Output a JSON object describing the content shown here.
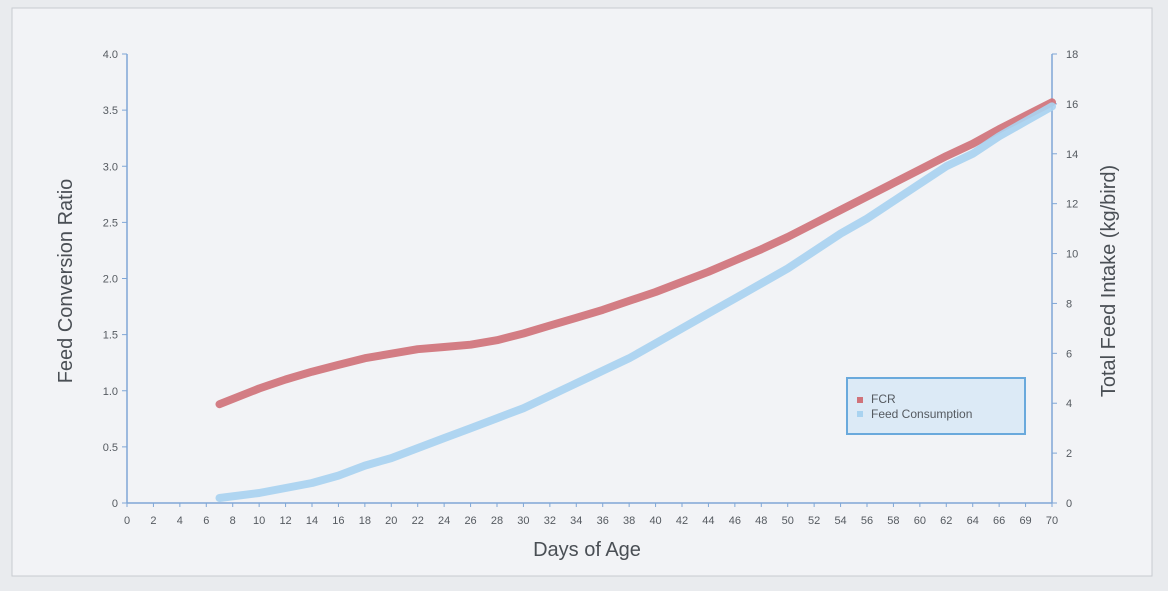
{
  "chart_data": {
    "type": "line",
    "title": "",
    "xlabel": "Days of Age",
    "ylabel_left": "Feed Conversion Ratio",
    "ylabel_right": "Total Feed Intake (kg/bird)",
    "x_ticks": [
      "0",
      "2",
      "4",
      "6",
      "8",
      "10",
      "12",
      "14",
      "16",
      "18",
      "20",
      "22",
      "24",
      "26",
      "28",
      "30",
      "32",
      "34",
      "36",
      "38",
      "40",
      "42",
      "44",
      "46",
      "48",
      "50",
      "52",
      "54",
      "56",
      "58",
      "60",
      "62",
      "64",
      "66",
      "69",
      "70"
    ],
    "y_left_ticks": [
      "0",
      "0.5",
      "1.0",
      "1.5",
      "2.0",
      "2.5",
      "3.0",
      "3.5",
      "4.0"
    ],
    "y_right_ticks": [
      "0",
      "2",
      "4",
      "6",
      "8",
      "10",
      "12",
      "14",
      "16",
      "18"
    ],
    "ylim_left": [
      0,
      4.0
    ],
    "ylim_right": [
      0,
      18
    ],
    "grid": false,
    "legend_position": "lower-right",
    "series": [
      {
        "name": "FCR",
        "axis": "left",
        "color": "#d0737a",
        "x": [
          7,
          10,
          12,
          14,
          16,
          18,
          20,
          22,
          24,
          26,
          28,
          30,
          32,
          34,
          36,
          38,
          40,
          42,
          44,
          46,
          48,
          50,
          52,
          54,
          56,
          58,
          60,
          62,
          64,
          66,
          68,
          70
        ],
        "values": [
          0.88,
          1.02,
          1.1,
          1.17,
          1.23,
          1.29,
          1.33,
          1.37,
          1.39,
          1.41,
          1.45,
          1.51,
          1.58,
          1.65,
          1.72,
          1.8,
          1.88,
          1.97,
          2.06,
          2.16,
          2.26,
          2.37,
          2.49,
          2.61,
          2.73,
          2.85,
          2.97,
          3.09,
          3.2,
          3.33,
          3.45,
          3.57
        ]
      },
      {
        "name": "Feed Consumption",
        "axis": "right",
        "color": "#a9d3f0",
        "x": [
          7,
          10,
          12,
          14,
          16,
          18,
          20,
          22,
          24,
          26,
          28,
          30,
          32,
          34,
          36,
          38,
          40,
          42,
          44,
          46,
          48,
          50,
          52,
          54,
          56,
          58,
          60,
          62,
          64,
          66,
          68,
          70
        ],
        "values": [
          0.2,
          0.4,
          0.6,
          0.8,
          1.1,
          1.5,
          1.8,
          2.2,
          2.6,
          3.0,
          3.4,
          3.8,
          4.3,
          4.8,
          5.3,
          5.8,
          6.4,
          7.0,
          7.6,
          8.2,
          8.8,
          9.4,
          10.1,
          10.8,
          11.4,
          12.1,
          12.8,
          13.5,
          14.0,
          14.7,
          15.3,
          15.9
        ]
      }
    ]
  }
}
